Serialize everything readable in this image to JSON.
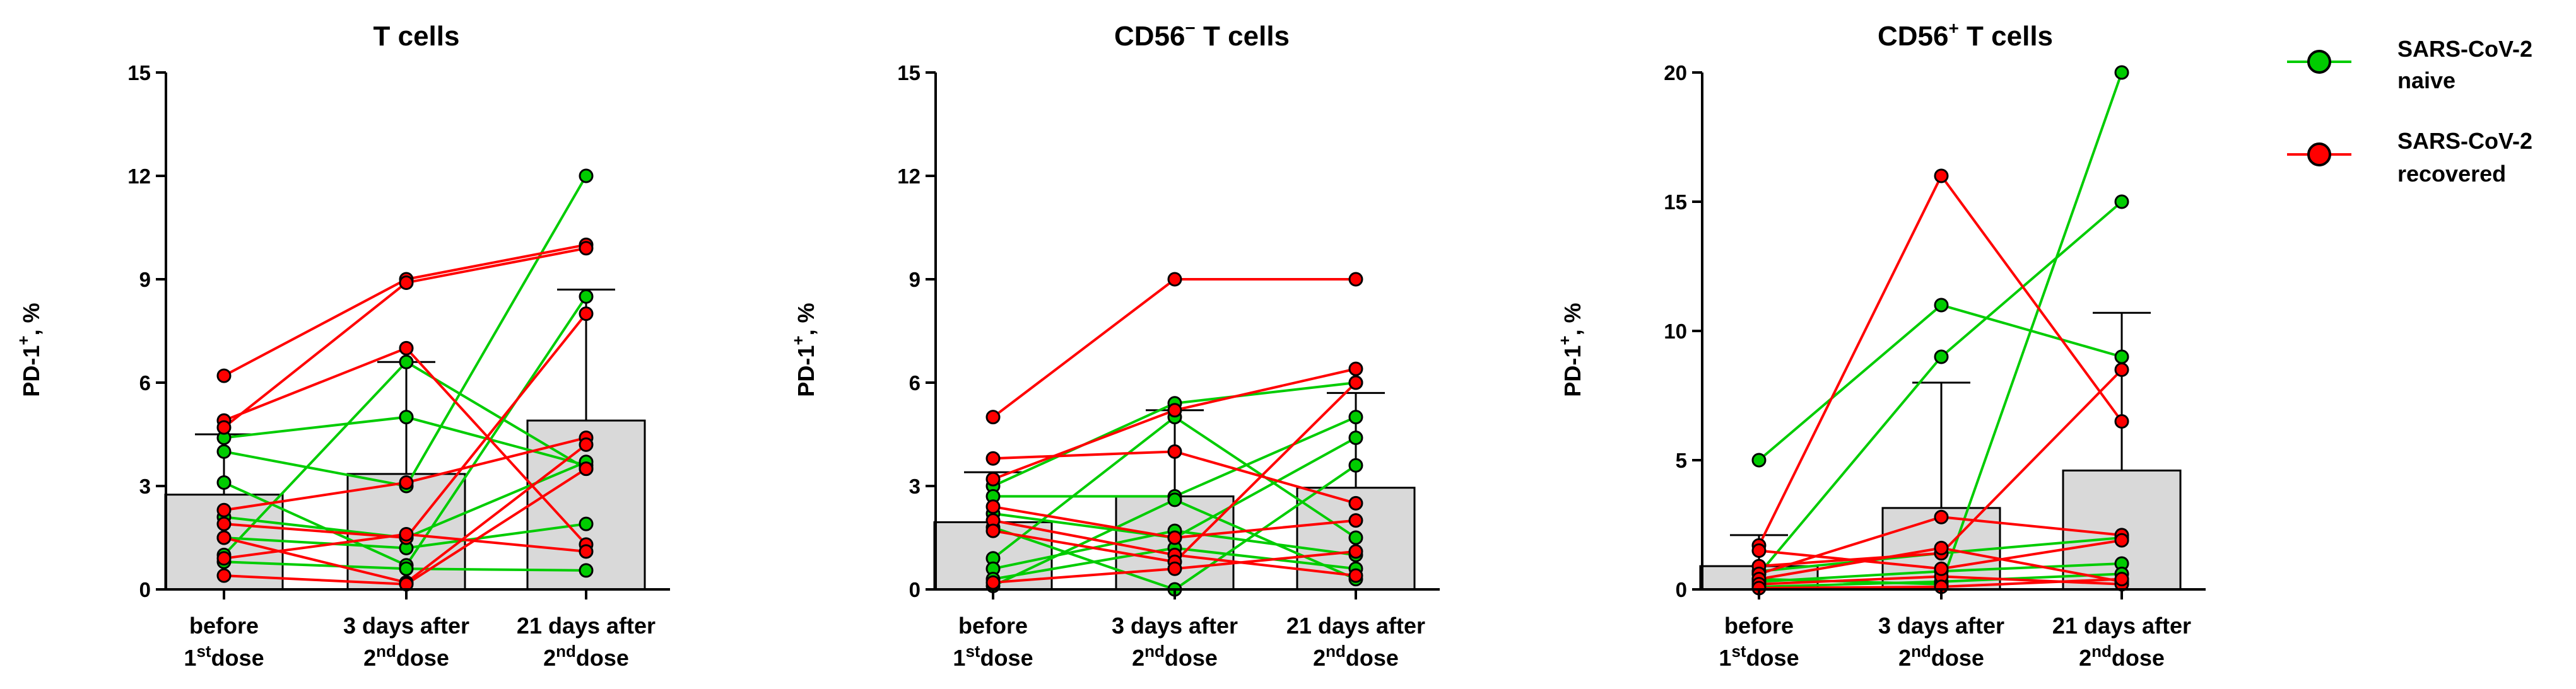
{
  "legend": {
    "naive": {
      "line1": "SARS-CoV-2",
      "line2": "naive",
      "color": "#00cc00"
    },
    "recovered": {
      "line1": "SARS-CoV-2",
      "line2": "recovered",
      "color": "#ff0000"
    }
  },
  "chart_data": [
    {
      "type": "bar",
      "title": {
        "main": "T cells",
        "sup": ""
      },
      "ylabel": "PD-1⁺, %",
      "ylim": [
        0,
        15
      ],
      "yticks": [
        0,
        3,
        6,
        9,
        12,
        15
      ],
      "categories": [
        {
          "line1": "before",
          "line2_sup": "st",
          "line2_pre": "1",
          "line2_post": "dose"
        },
        {
          "line1": "3 days after",
          "line2_sup": "nd",
          "line2_pre": "2",
          "line2_post": "dose"
        },
        {
          "line1": "21 days after",
          "line2_sup": "nd",
          "line2_pre": "2",
          "line2_post": "dose"
        }
      ],
      "bar_means": [
        2.75,
        3.35,
        4.9
      ],
      "bar_errors_upper": [
        4.5,
        6.6,
        8.7
      ],
      "series": [
        {
          "group": "naive",
          "values": [
            4.4,
            5.0,
            3.6
          ]
        },
        {
          "group": "naive",
          "values": [
            4.0,
            3.0,
            12.0
          ]
        },
        {
          "group": "naive",
          "values": [
            3.1,
            0.7,
            8.5
          ]
        },
        {
          "group": "naive",
          "values": [
            2.1,
            1.5,
            3.7
          ]
        },
        {
          "group": "naive",
          "values": [
            1.5,
            1.2,
            1.9
          ]
        },
        {
          "group": "naive",
          "values": [
            1.0,
            6.6,
            3.5
          ]
        },
        {
          "group": "naive",
          "values": [
            0.8,
            0.6,
            0.55
          ]
        },
        {
          "group": "recovered",
          "values": [
            6.2,
            9.0,
            10.0
          ]
        },
        {
          "group": "recovered",
          "values": [
            4.9,
            7.0,
            1.3
          ]
        },
        {
          "group": "recovered",
          "values": [
            4.7,
            8.9,
            9.9
          ]
        },
        {
          "group": "recovered",
          "values": [
            2.3,
            3.1,
            4.4
          ]
        },
        {
          "group": "recovered",
          "values": [
            1.9,
            1.5,
            8.0
          ]
        },
        {
          "group": "recovered",
          "values": [
            1.5,
            0.2,
            4.2
          ]
        },
        {
          "group": "recovered",
          "values": [
            0.9,
            1.6,
            1.1
          ]
        },
        {
          "group": "recovered",
          "values": [
            0.4,
            0.15,
            3.5
          ]
        }
      ]
    },
    {
      "type": "bar",
      "title": {
        "main": "CD56",
        "sup": "−",
        "rest": " T cells"
      },
      "ylabel": "PD-1⁺, %",
      "ylim": [
        0,
        15
      ],
      "yticks": [
        0,
        3,
        6,
        9,
        12,
        15
      ],
      "categories": [
        {
          "line1": "before",
          "line2_sup": "st",
          "line2_pre": "1",
          "line2_post": "dose"
        },
        {
          "line1": "3 days after",
          "line2_sup": "nd",
          "line2_pre": "2",
          "line2_post": "dose"
        },
        {
          "line1": "21 days after",
          "line2_sup": "nd",
          "line2_pre": "2",
          "line2_post": "dose"
        }
      ],
      "bar_means": [
        1.95,
        2.7,
        2.95
      ],
      "bar_errors_upper": [
        3.4,
        5.2,
        5.7
      ],
      "series": [
        {
          "group": "naive",
          "values": [
            3.0,
            5.4,
            6.0
          ]
        },
        {
          "group": "naive",
          "values": [
            2.7,
            2.7,
            5.0
          ]
        },
        {
          "group": "naive",
          "values": [
            2.2,
            1.5,
            4.4
          ]
        },
        {
          "group": "naive",
          "values": [
            1.8,
            0.0,
            3.6
          ]
        },
        {
          "group": "naive",
          "values": [
            0.9,
            5.0,
            1.5
          ]
        },
        {
          "group": "naive",
          "values": [
            0.6,
            1.7,
            1.0
          ]
        },
        {
          "group": "naive",
          "values": [
            0.3,
            1.2,
            0.6
          ]
        },
        {
          "group": "naive",
          "values": [
            0.1,
            2.6,
            0.3
          ]
        },
        {
          "group": "recovered",
          "values": [
            5.0,
            9.0,
            9.0
          ]
        },
        {
          "group": "recovered",
          "values": [
            3.8,
            4.0,
            2.5
          ]
        },
        {
          "group": "recovered",
          "values": [
            3.2,
            5.2,
            6.4
          ]
        },
        {
          "group": "recovered",
          "values": [
            2.4,
            1.5,
            2.0
          ]
        },
        {
          "group": "recovered",
          "values": [
            2.0,
            1.0,
            0.4
          ]
        },
        {
          "group": "recovered",
          "values": [
            1.7,
            0.8,
            6.0
          ]
        },
        {
          "group": "recovered",
          "values": [
            0.2,
            0.6,
            1.1
          ]
        }
      ]
    },
    {
      "type": "bar",
      "title": {
        "main": "CD56",
        "sup": "+",
        "rest": " T cells"
      },
      "ylabel": "PD-1⁺, %",
      "ylim": [
        0,
        20
      ],
      "yticks": [
        0,
        5,
        10,
        15,
        20
      ],
      "categories": [
        {
          "line1": "before",
          "line2_sup": "st",
          "line2_pre": "1",
          "line2_post": "dose"
        },
        {
          "line1": "3 days after",
          "line2_sup": "nd",
          "line2_pre": "2",
          "line2_post": "dose"
        },
        {
          "line1": "21 days after",
          "line2_sup": "nd",
          "line2_pre": "2",
          "line2_post": "dose"
        }
      ],
      "bar_means": [
        0.9,
        3.15,
        4.6
      ],
      "bar_errors_upper": [
        2.1,
        8.0,
        10.7
      ],
      "series": [
        {
          "group": "naive",
          "values": [
            5.0,
            11.0,
            9.0
          ]
        },
        {
          "group": "naive",
          "values": [
            0.6,
            9.0,
            15.0
          ]
        },
        {
          "group": "naive",
          "values": [
            0.4,
            0.2,
            20.0
          ]
        },
        {
          "group": "naive",
          "values": [
            0.7,
            1.4,
            2.0
          ]
        },
        {
          "group": "naive",
          "values": [
            0.3,
            0.7,
            1.0
          ]
        },
        {
          "group": "naive",
          "values": [
            0.1,
            0.3,
            0.6
          ]
        },
        {
          "group": "recovered",
          "values": [
            1.7,
            16.0,
            6.5
          ]
        },
        {
          "group": "recovered",
          "values": [
            0.9,
            1.4,
            8.5
          ]
        },
        {
          "group": "recovered",
          "values": [
            0.6,
            2.8,
            2.1
          ]
        },
        {
          "group": "recovered",
          "values": [
            0.4,
            1.6,
            0.3
          ]
        },
        {
          "group": "recovered",
          "values": [
            0.2,
            0.5,
            0.2
          ]
        },
        {
          "group": "recovered",
          "values": [
            0.05,
            0.1,
            0.4
          ]
        },
        {
          "group": "recovered",
          "values": [
            1.5,
            0.8,
            1.9
          ]
        }
      ]
    }
  ]
}
